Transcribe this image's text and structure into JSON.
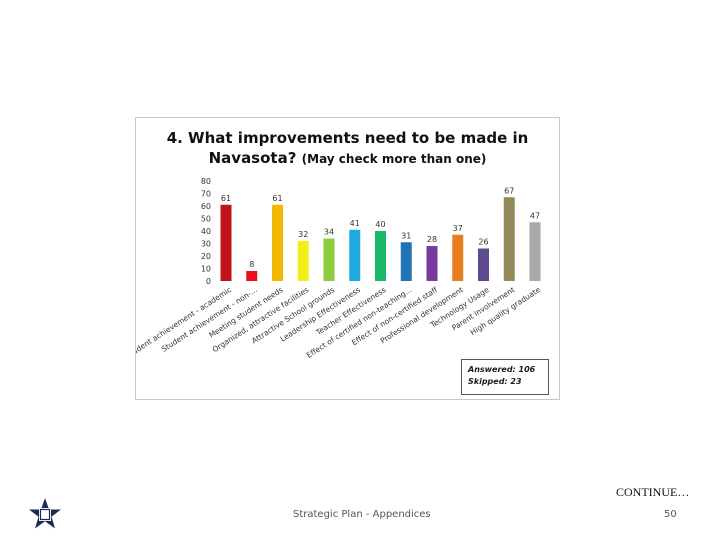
{
  "chart_data": {
    "type": "bar",
    "title": "4. What improvements need to be made in Navasota?",
    "title_note": "(May check more than one)",
    "ylim": [
      0,
      80
    ],
    "yticks": [
      0,
      10,
      20,
      30,
      40,
      50,
      60,
      70,
      80
    ],
    "grid": false,
    "categories": [
      "Student achievement - academic",
      "Student achievement - non-...",
      "Meeting student needs",
      "Organized, attractive facilities",
      "Attractive School grounds",
      "Leadership Effectiveness",
      "Teacher Effectiveness",
      "Effect of certified non-teaching...",
      "Effect of non-certified staff",
      "Professional development",
      "Technology Usage",
      "Parent involvement",
      "High quality graduate"
    ],
    "values": [
      61,
      8,
      61,
      32,
      34,
      41,
      40,
      31,
      28,
      37,
      26,
      67,
      47
    ],
    "colors": [
      "#c0141a",
      "#e8131a",
      "#f5b800",
      "#f2ee1a",
      "#8ccc3e",
      "#1faadf",
      "#19b86b",
      "#2272b6",
      "#7a3aa0",
      "#e87d22",
      "#5e4a8e",
      "#918a58",
      "#aaaaaa"
    ]
  },
  "stats": {
    "answered": "Answered:  106",
    "skipped": "Skipped:  23"
  },
  "footer": {
    "continue": "CONTINUE…",
    "center": "Strategic Plan - Appendices",
    "page": "50"
  }
}
